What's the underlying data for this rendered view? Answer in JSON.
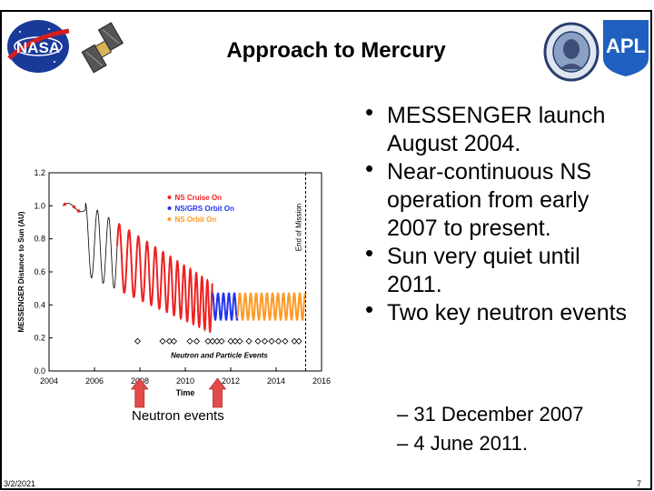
{
  "slide": {
    "title": "Approach to Mercury",
    "bullets": [
      "MESSENGER launch August 2004.",
      "Near-continuous NS operation from early 2007 to present.",
      "Sun very quiet until 2011.",
      "Two key neutron events"
    ],
    "sub_bullets": [
      "– 31 December 2007",
      "– 4 June 2011."
    ],
    "caption": "Neutron events",
    "date": "3/2/2021",
    "page_number": "7",
    "logos": {
      "nasa": "NASA",
      "apl": "APL"
    }
  },
  "chart_data": {
    "type": "line",
    "title": "",
    "xlabel": "Time",
    "ylabel": "MESSENGER Distance to Sun (AU)",
    "xlim": [
      2004,
      2016
    ],
    "ylim": [
      0.0,
      1.2
    ],
    "xticks": [
      "2004",
      "2006",
      "2008",
      "2010",
      "2012",
      "2014",
      "2016"
    ],
    "yticks": [
      "0.0",
      "0.2",
      "0.4",
      "0.6",
      "0.8",
      "1.0",
      "1.2"
    ],
    "legend": [
      "NS Cruise On",
      "NS/GRS Orbit On",
      "NS Orbit On"
    ],
    "legend_colors": [
      "#ee2222",
      "#2233ee",
      "#ff9922"
    ],
    "legend_position": "top-right",
    "annotations": [
      "End of Mission",
      "Neutron and Particle Events"
    ],
    "end_of_mission_x": 2015.3,
    "event_markers_y": 0.18,
    "event_markers_x": [
      2007.9,
      2009.0,
      2009.3,
      2009.5,
      2010.2,
      2010.5,
      2011.0,
      2011.2,
      2011.4,
      2011.6,
      2012.0,
      2012.2,
      2012.4,
      2012.8,
      2013.2,
      2013.5,
      2013.8,
      2014.1,
      2014.4,
      2014.8,
      2015.0
    ],
    "key_events_x": [
      2007.99,
      2011.42
    ],
    "series_info": [
      {
        "name": "NS Cruise On",
        "x_range": [
          2004.6,
          2011.2
        ]
      },
      {
        "name": "NS/GRS Orbit On",
        "x_range": [
          2011.2,
          2012.3
        ]
      },
      {
        "name": "NS Orbit On",
        "x_range": [
          2012.3,
          2015.3
        ]
      }
    ]
  }
}
